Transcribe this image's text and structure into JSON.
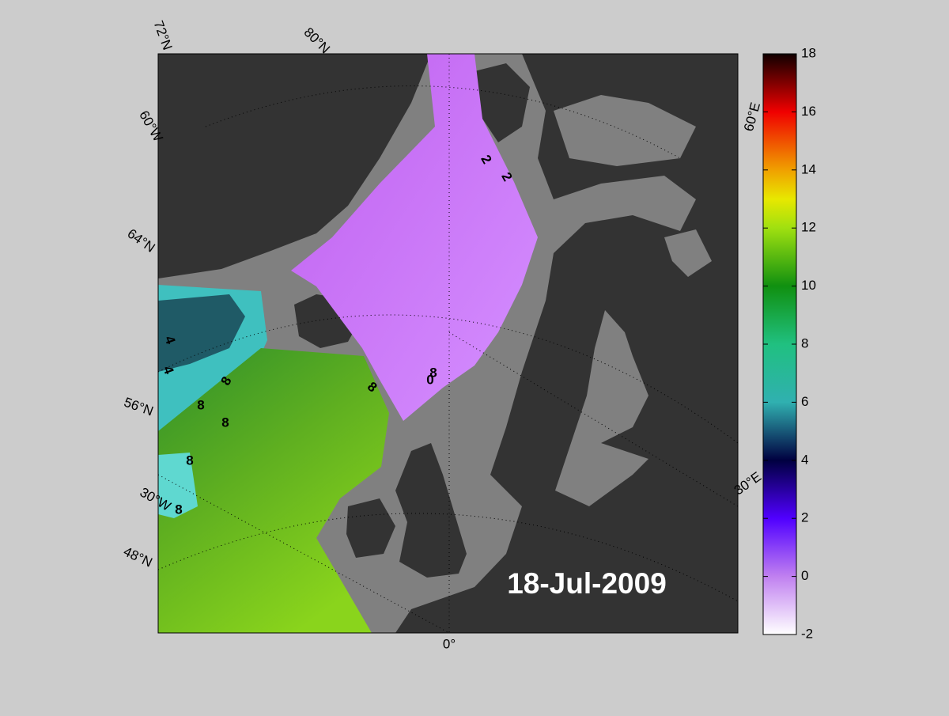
{
  "map": {
    "date": "18-Jul-2009",
    "graticule_labels": [
      "72°N",
      "80°N",
      "60°W",
      "64°N",
      "56°N",
      "30°W",
      "48°N",
      "0°",
      "60°E",
      "30°E"
    ],
    "contour_labels": [
      2,
      2,
      4,
      4,
      8,
      8,
      8,
      8,
      8,
      8,
      8,
      0
    ],
    "colorbar": {
      "lim": [
        -2,
        18
      ],
      "ticks": [
        -2,
        0,
        2,
        4,
        6,
        8,
        10,
        12,
        14,
        16,
        18
      ]
    }
  }
}
